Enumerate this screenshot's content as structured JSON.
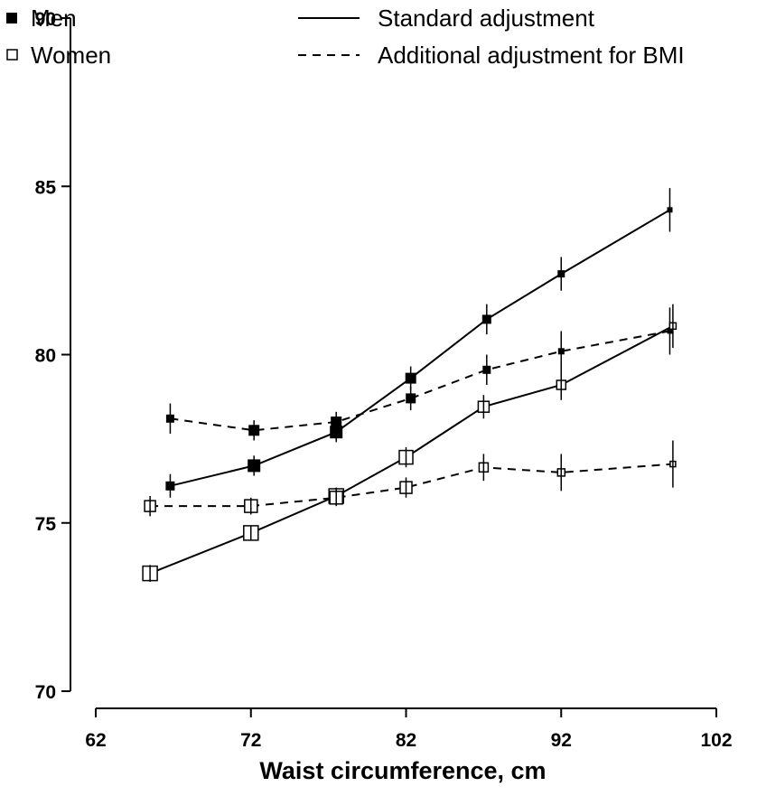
{
  "chart_data": {
    "type": "line",
    "title": "",
    "xlabel": "Waist circumference, cm",
    "ylabel": "",
    "xlim": [
      62,
      102
    ],
    "ylim": [
      70,
      90
    ],
    "xticks": [
      "62",
      "72",
      "82",
      "92",
      "102"
    ],
    "yticks": [
      "70",
      "75",
      "80",
      "85",
      "90"
    ],
    "grid": false,
    "legend": {
      "placement": "top",
      "entries": [
        "Men",
        "Women",
        "Standard adjustment",
        "Additional adjustment for BMI"
      ]
    },
    "series": [
      {
        "name": "Men",
        "linestyle": "solid",
        "marker": "filled-square",
        "x": [
          66.8,
          72.2,
          77.5,
          82.3,
          87.2,
          92.0,
          99.0
        ],
        "y": [
          76.1,
          76.7,
          77.7,
          79.3,
          81.05,
          82.4,
          84.3
        ],
        "err": [
          0.35,
          0.3,
          0.3,
          0.35,
          0.45,
          0.5,
          0.65
        ],
        "marker_size": [
          10,
          14,
          14,
          12,
          10,
          8,
          6
        ]
      },
      {
        "name": "Men",
        "linestyle": "dashed",
        "marker": "filled-square",
        "x": [
          66.8,
          72.2,
          77.5,
          82.3,
          87.2,
          92.0,
          99.0
        ],
        "y": [
          78.1,
          77.75,
          78.0,
          78.7,
          79.55,
          80.1,
          80.7
        ],
        "err": [
          0.45,
          0.3,
          0.3,
          0.35,
          0.45,
          0.6,
          0.7
        ],
        "marker_size": [
          9,
          12,
          12,
          11,
          9,
          7,
          6
        ]
      },
      {
        "name": "Women",
        "linestyle": "solid",
        "marker": "open-square",
        "x": [
          65.5,
          72.0,
          77.5,
          82.0,
          87.0,
          92.0,
          99.2
        ],
        "y": [
          73.5,
          74.7,
          75.8,
          76.95,
          78.45,
          79.1,
          80.85
        ],
        "err": [
          0.25,
          0.2,
          0.25,
          0.3,
          0.35,
          0.45,
          0.65
        ],
        "marker_size": [
          16,
          16,
          16,
          15,
          12,
          10,
          7
        ]
      },
      {
        "name": "Women",
        "linestyle": "dashed",
        "marker": "open-square",
        "x": [
          65.5,
          72.0,
          77.5,
          82.0,
          87.0,
          92.0,
          99.2
        ],
        "y": [
          75.5,
          75.5,
          75.75,
          76.05,
          76.65,
          76.5,
          76.75
        ],
        "err": [
          0.3,
          0.25,
          0.25,
          0.3,
          0.4,
          0.55,
          0.7
        ],
        "marker_size": [
          12,
          14,
          14,
          13,
          10,
          8,
          6
        ]
      }
    ]
  }
}
